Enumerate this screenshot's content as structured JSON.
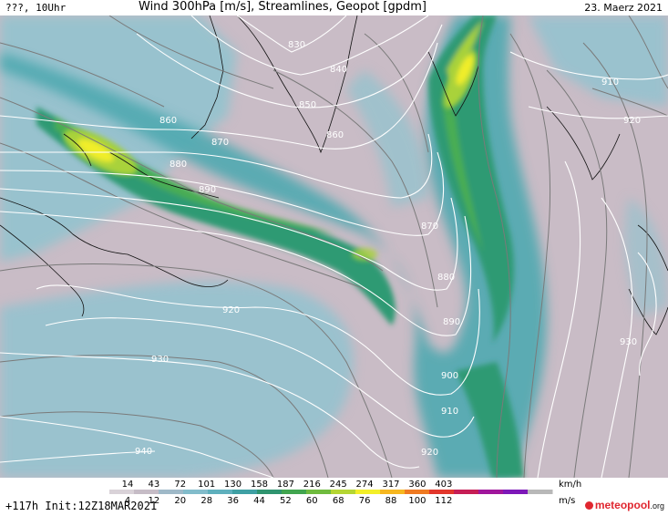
{
  "header": {
    "left": "???, 10Uhr",
    "center": "Wind 300hPa [m/s], Streamlines, Geopot [gpdm]",
    "right": "23. Maerz 2021"
  },
  "map": {
    "background_color": "#c9bcc6",
    "jet_colors": {
      "light_blue": "#8fc3cf",
      "teal": "#4fa9b0",
      "green_dark": "#2f9a73",
      "green": "#49ad52",
      "yellow_green": "#a9d23b",
      "yellow": "#f1ee2a"
    },
    "contour_color": "#ffffff",
    "streamline_color": "#7a7a7a",
    "contour_labels": [
      "830",
      "840",
      "850",
      "860",
      "860",
      "870",
      "870",
      "880",
      "880",
      "890",
      "890",
      "900",
      "910",
      "910",
      "920",
      "920",
      "920",
      "930",
      "930",
      "940"
    ]
  },
  "legend": {
    "kmh_unit": "km/h",
    "ms_unit": "m/s",
    "kmh_ticks": [
      "14",
      "43",
      "72",
      "101",
      "130",
      "158",
      "187",
      "216",
      "245",
      "274",
      "317",
      "360",
      "403"
    ],
    "ms_ticks": [
      "4",
      "12",
      "20",
      "28",
      "36",
      "44",
      "52",
      "60",
      "68",
      "76",
      "88",
      "100",
      "112"
    ],
    "colors": [
      "#d9d2d8",
      "#c6bcc6",
      "#9fb9c8",
      "#82bccb",
      "#5fb0bd",
      "#3fa0a4",
      "#2f946f",
      "#41a54f",
      "#6fbb3e",
      "#b5d633",
      "#f3ef29",
      "#f6b720",
      "#ef7a22",
      "#e2372c",
      "#c61e55",
      "#a0169c",
      "#7d18b8",
      "#b8b8b8"
    ]
  },
  "footer": {
    "init": "+117h Init:12Z18MAR2021",
    "logo_main": "meteopool",
    "logo_suffix": ".org"
  }
}
